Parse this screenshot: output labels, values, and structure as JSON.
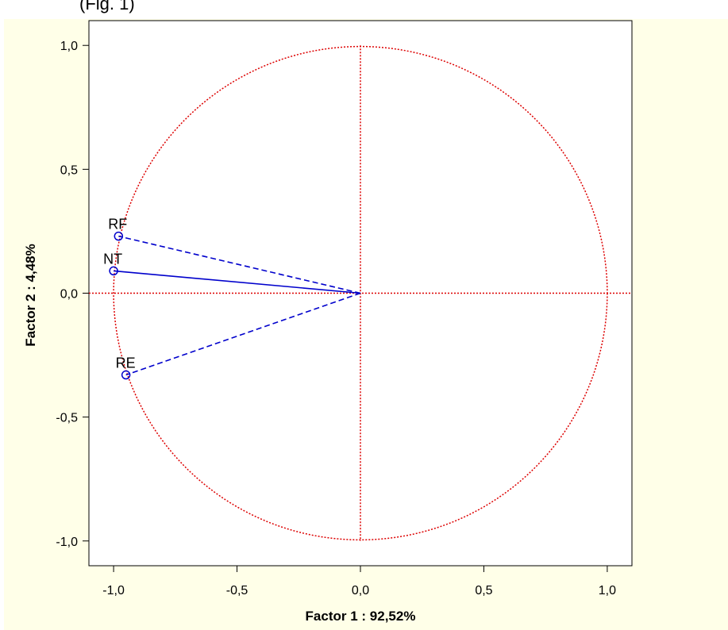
{
  "page": {
    "caption_fragment": "(Fig. 1)",
    "panel_color": "#ffffe8"
  },
  "chart_data": {
    "type": "scatter",
    "xlabel": "Factor 1 : 92,52%",
    "ylabel": "Factor 2 :  4,48%",
    "xlim": [
      -1.1,
      1.1
    ],
    "ylim": [
      -1.1,
      1.1
    ],
    "x_ticks": [
      -1.0,
      -0.5,
      0.0,
      0.5,
      1.0
    ],
    "x_tick_labels": [
      "-1,0",
      "-0,5",
      "0,0",
      "0,5",
      "1,0"
    ],
    "y_ticks": [
      1.0,
      0.5,
      0.0,
      -0.5,
      -1.0
    ],
    "y_tick_labels": [
      "1,0",
      "0,5",
      "0,0",
      "-0,5",
      "-1,0"
    ],
    "unit_circle": true,
    "reference_lines": "x=0 and y=0",
    "grid": false,
    "colors": {
      "circle": "#dd0000",
      "vectors": "#0000cc",
      "axes": "#000000"
    },
    "points": [
      {
        "label": "RF",
        "x": -0.98,
        "y": 0.23,
        "line_style": "dashed"
      },
      {
        "label": "NT",
        "x": -1.0,
        "y": 0.09,
        "line_style": "solid"
      },
      {
        "label": "RE",
        "x": -0.95,
        "y": -0.33,
        "line_style": "dashed"
      }
    ]
  }
}
